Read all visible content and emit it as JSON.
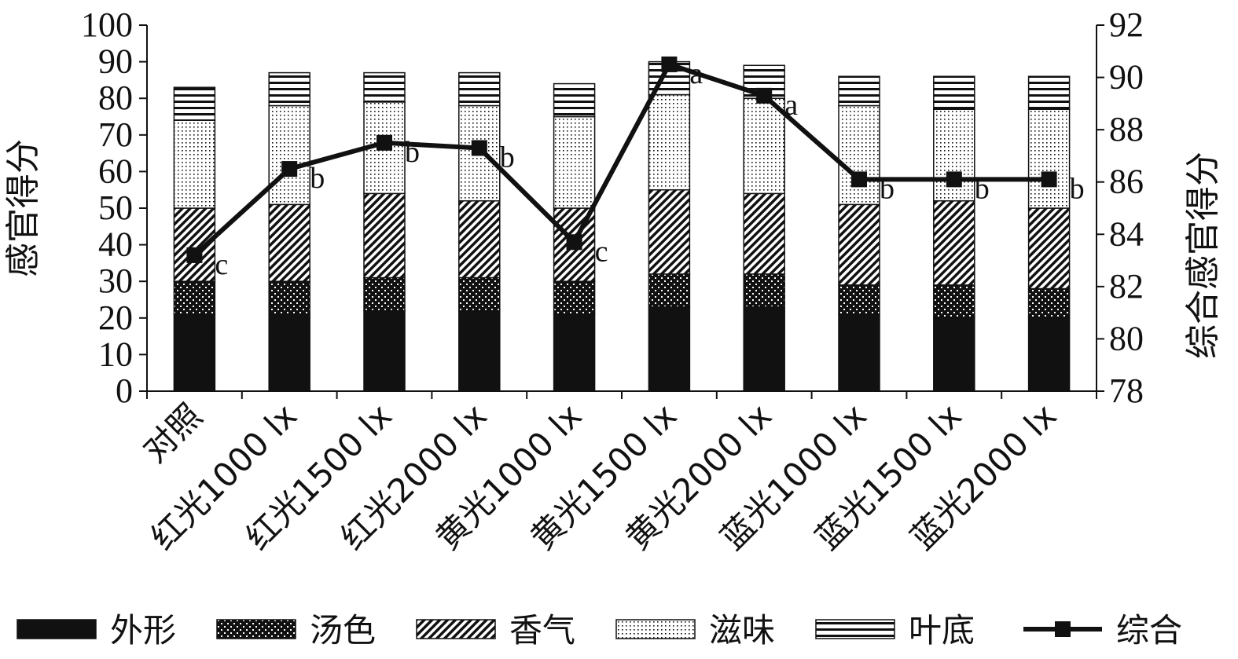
{
  "chart_data": {
    "type": "bar",
    "stacked": true,
    "categories": [
      "对照",
      "红光1000 lx",
      "红光1500 lx",
      "红光2000 lx",
      "黄光1000 lx",
      "黄光1500 lx",
      "黄光2000 lx",
      "蓝光1000 lx",
      "蓝光1500 lx",
      "蓝光2000 lx"
    ],
    "ylabel": "感官得分",
    "y2label": "综合感官得分",
    "ylim": [
      0,
      100
    ],
    "y2lim": [
      78,
      92
    ],
    "yticks": [
      "0",
      "10",
      "20",
      "30",
      "40",
      "50",
      "60",
      "70",
      "80",
      "90",
      "100"
    ],
    "y2ticks": [
      "78",
      "80",
      "82",
      "84",
      "86",
      "88",
      "90",
      "92"
    ],
    "series": [
      {
        "name": "外形",
        "pattern": "solid",
        "values": [
          21,
          21,
          22,
          22,
          21,
          23,
          23,
          21,
          20,
          20
        ]
      },
      {
        "name": "汤色",
        "pattern": "dots",
        "values": [
          9,
          9,
          9,
          9,
          9,
          9,
          9,
          8,
          9,
          8
        ]
      },
      {
        "name": "香气",
        "pattern": "diagonal",
        "values": [
          20,
          21,
          23,
          21,
          20,
          23,
          22,
          22,
          23,
          22
        ]
      },
      {
        "name": "滋味",
        "pattern": "fine-dots",
        "values": [
          24,
          27,
          25,
          26,
          25,
          26,
          26,
          27,
          25,
          27
        ]
      },
      {
        "name": "叶底",
        "pattern": "horizontal-lines",
        "values": [
          9,
          9,
          8,
          9,
          9,
          9,
          9,
          8,
          9,
          9
        ]
      }
    ],
    "line_series": {
      "name": "综合",
      "axis": "right",
      "values": [
        83.2,
        86.5,
        87.5,
        87.3,
        83.7,
        90.5,
        89.3,
        86.1,
        86.1,
        86.1
      ],
      "labels": [
        "c",
        "b",
        "b",
        "b",
        "c",
        "a",
        "a",
        "b",
        "b",
        "b"
      ]
    },
    "legend": "bottom",
    "grid": false
  },
  "colors": {
    "ink": "#111111",
    "background": "#ffffff"
  }
}
